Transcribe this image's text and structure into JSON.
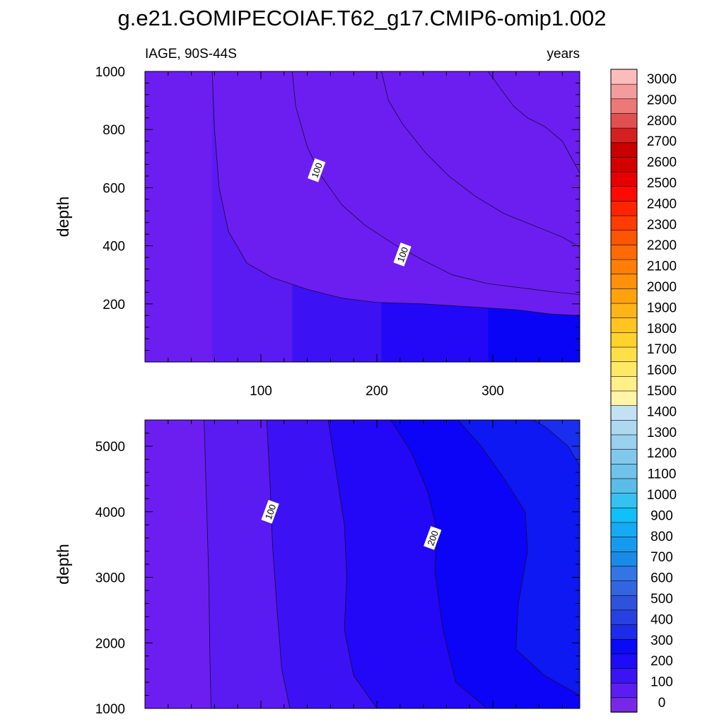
{
  "title": "g.e21.GOMIPECOIAF.T62_g17.CMIP6-omip1.002",
  "subtitle_left": "IAGE, 90S-44S",
  "subtitle_right": "years",
  "chart_data": [
    {
      "type": "contour",
      "panel": "top",
      "xlabel": "",
      "ylabel": "depth",
      "xlim": [
        0,
        375
      ],
      "ylim": [
        1000,
        0
      ],
      "y_reversed": true,
      "x_ticks": [
        100,
        200,
        300
      ],
      "x_ticks_labeled": true,
      "y_ticks": [
        200,
        400,
        600,
        800,
        1000
      ],
      "contour_labels": [
        {
          "text": "100",
          "x": 148,
          "y": 660
        },
        {
          "text": "100",
          "x": 222,
          "y": 370
        }
      ],
      "contour_lines": [
        {
          "level": 50,
          "points": [
            [
              58,
              1000
            ],
            [
              60,
              800
            ],
            [
              64,
              600
            ],
            [
              72,
              450
            ],
            [
              88,
              340
            ],
            [
              110,
              290
            ],
            [
              140,
              250
            ],
            [
              170,
              220
            ],
            [
              200,
              205
            ],
            [
              240,
              200
            ],
            [
              280,
              190
            ],
            [
              320,
              180
            ],
            [
              350,
              165
            ],
            [
              375,
              160
            ]
          ]
        },
        {
          "level": 100,
          "points": [
            [
              127,
              1000
            ],
            [
              130,
              880
            ],
            [
              140,
              740
            ],
            [
              152,
              640
            ],
            [
              170,
              540
            ],
            [
              190,
              470
            ],
            [
              215,
              405
            ],
            [
              240,
              350
            ],
            [
              265,
              300
            ],
            [
              295,
              270
            ],
            [
              325,
              255
            ],
            [
              355,
              240
            ],
            [
              375,
              232
            ]
          ]
        },
        {
          "level": 150,
          "points": [
            [
              204,
              1000
            ],
            [
              210,
              900
            ],
            [
              222,
              820
            ],
            [
              242,
              720
            ],
            [
              262,
              640
            ],
            [
              285,
              570
            ],
            [
              310,
              510
            ],
            [
              335,
              470
            ],
            [
              360,
              430
            ],
            [
              375,
              395
            ]
          ]
        },
        {
          "level": 200,
          "points": [
            [
              296,
              1000
            ],
            [
              305,
              950
            ],
            [
              318,
              880
            ],
            [
              330,
              840
            ],
            [
              345,
              810
            ],
            [
              360,
              760
            ],
            [
              375,
              650
            ]
          ]
        }
      ]
    },
    {
      "type": "contour",
      "panel": "bottom",
      "xlabel": "",
      "ylabel": "depth",
      "xlim": [
        0,
        375
      ],
      "ylim": [
        5400,
        1000
      ],
      "y_reversed": true,
      "x_ticks": [
        100,
        200,
        300
      ],
      "x_ticks_labeled": false,
      "y_ticks": [
        1000,
        2000,
        3000,
        4000,
        5000
      ],
      "contour_labels": [
        {
          "text": "100",
          "x": 108,
          "y": 4000
        },
        {
          "text": "200",
          "x": 248,
          "y": 3600
        }
      ],
      "contour_lines": [
        {
          "level": 50,
          "points": [
            [
              57,
              1000
            ],
            [
              56,
              1800
            ],
            [
              55,
              3000
            ],
            [
              53,
              4200
            ],
            [
              51,
              5400
            ]
          ]
        },
        {
          "level": 100,
          "points": [
            [
              125,
              1000
            ],
            [
              118,
              1600
            ],
            [
              114,
              2500
            ],
            [
              110,
              3500
            ],
            [
              108,
              4400
            ],
            [
              105,
              5400
            ]
          ]
        },
        {
          "level": 150,
          "points": [
            [
              200,
              1000
            ],
            [
              180,
              1500
            ],
            [
              172,
              2200
            ],
            [
              174,
              3000
            ],
            [
              172,
              3800
            ],
            [
              165,
              4600
            ],
            [
              158,
              5400
            ]
          ]
        },
        {
          "level": 200,
          "points": [
            [
              295,
              1000
            ],
            [
              268,
              1400
            ],
            [
              257,
              2200
            ],
            [
              250,
              3100
            ],
            [
              252,
              3700
            ],
            [
              244,
              4300
            ],
            [
              230,
              4900
            ],
            [
              212,
              5400
            ]
          ]
        },
        {
          "level": 250,
          "points": [
            [
              375,
              1200
            ],
            [
              345,
              1500
            ],
            [
              320,
              1900
            ],
            [
              322,
              2600
            ],
            [
              330,
              3400
            ],
            [
              328,
              4000
            ],
            [
              310,
              4500
            ],
            [
              290,
              5000
            ],
            [
              270,
              5400
            ]
          ]
        },
        {
          "level": 300,
          "points": [
            [
              375,
              4700
            ],
            [
              365,
              5000
            ],
            [
              345,
              5300
            ],
            [
              335,
              5400
            ]
          ]
        }
      ]
    }
  ],
  "colorbar": {
    "labels": [
      "0",
      "100",
      "200",
      "300",
      "400",
      "500",
      "600",
      "700",
      "800",
      "900",
      "1000",
      "1100",
      "1200",
      "1300",
      "1400",
      "1500",
      "1600",
      "1700",
      "1800",
      "1900",
      "2000",
      "2100",
      "2200",
      "2300",
      "2400",
      "2500",
      "2600",
      "2700",
      "2800",
      "2900",
      "3000"
    ],
    "colors": [
      "#7a28e8",
      "#5a1ef0",
      "#3a14f4",
      "#1e0cf6",
      "#0a0af4",
      "#1c2ce8",
      "#2840e2",
      "#2e52dc",
      "#3266e0",
      "#3276e6",
      "#1a8ae8",
      "#169af0",
      "#14aaf6",
      "#10c0f8",
      "#34c2f0",
      "#5abce8",
      "#70c2ea",
      "#82c8ec",
      "#98d0ee",
      "#aed8f0",
      "#c2e2f4",
      "#fff4a8",
      "#fff088",
      "#ffe866",
      "#ffdf48",
      "#ffd22c",
      "#ffc420",
      "#ffb418",
      "#ffa20e",
      "#ff9008",
      "#ff7e06",
      "#ff6a04",
      "#ff5402",
      "#ff3c02",
      "#ff2400",
      "#ff0a00",
      "#e80000",
      "#d40000",
      "#c80000",
      "#d42020",
      "#e05050",
      "#ec7878",
      "#f49c9c",
      "#fcbcbc"
    ]
  }
}
